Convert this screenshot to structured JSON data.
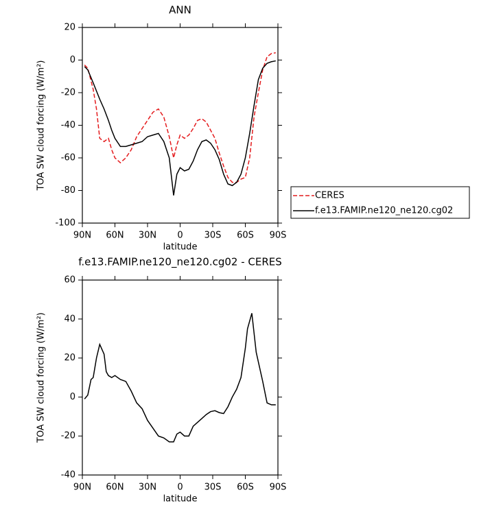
{
  "chart_data": [
    {
      "type": "line",
      "title": "ANN",
      "x_label": "latitude",
      "y_label": "TOA SW cloud forcing (W/m²)",
      "xlim": [
        90,
        -90
      ],
      "ylim": [
        -100,
        20
      ],
      "xticks": [
        {
          "value": 90,
          "label": "90N"
        },
        {
          "value": 60,
          "label": "60N"
        },
        {
          "value": 30,
          "label": "30N"
        },
        0,
        {
          "value": -30,
          "label": "30S"
        },
        {
          "value": -60,
          "label": "60S"
        },
        {
          "value": -90,
          "label": "90S"
        }
      ],
      "yticks": [
        -100,
        -80,
        -60,
        -40,
        -20,
        0,
        20
      ],
      "legend": "outside-right",
      "x": [
        88,
        85,
        80,
        77,
        74,
        70,
        66,
        63,
        60,
        55,
        50,
        45,
        40,
        35,
        30,
        25,
        20,
        15,
        10,
        6,
        3,
        0,
        -4,
        -8,
        -12,
        -16,
        -20,
        -24,
        -28,
        -32,
        -36,
        -40,
        -44,
        -48,
        -52,
        -56,
        -60,
        -64,
        -68,
        -72,
        -76,
        -80,
        -84,
        -88
      ],
      "series": [
        {
          "name": "CERES",
          "color": "#e41a1c",
          "dashed": true,
          "values": [
            -3,
            -5,
            -18,
            -30,
            -48,
            -50,
            -48,
            -55,
            -60,
            -63,
            -60,
            -55,
            -47,
            -42,
            -37,
            -32,
            -30,
            -35,
            -47,
            -60,
            -52,
            -46,
            -48,
            -46,
            -42,
            -37,
            -36,
            -38,
            -43,
            -48,
            -57,
            -65,
            -72,
            -75,
            -75,
            -73,
            -72,
            -60,
            -35,
            -20,
            -6,
            2,
            4,
            4.5
          ]
        },
        {
          "name": "f.e13.FAMIP.ne120_ne120.cg02",
          "color": "#000000",
          "dashed": false,
          "values": [
            -4,
            -6,
            -14,
            -19,
            -24,
            -30,
            -37,
            -43,
            -48,
            -53,
            -53,
            -52,
            -51,
            -50,
            -47,
            -46,
            -45,
            -50,
            -60,
            -83,
            -70,
            -66,
            -68,
            -67,
            -62,
            -55,
            -50,
            -49,
            -51,
            -55,
            -61,
            -70,
            -76,
            -77,
            -75,
            -70,
            -60,
            -45,
            -28,
            -12,
            -5,
            -2,
            -1,
            -0.5
          ]
        }
      ]
    },
    {
      "type": "line",
      "title": "f.e13.FAMIP.ne120_ne120.cg02 - CERES",
      "x_label": "latitude",
      "y_label": "TOA SW cloud forcing (W/m²)",
      "xlim": [
        90,
        -90
      ],
      "ylim": [
        -40,
        60
      ],
      "xticks": [
        {
          "value": 90,
          "label": "90N"
        },
        {
          "value": 60,
          "label": "60N"
        },
        {
          "value": 30,
          "label": "30N"
        },
        0,
        {
          "value": -30,
          "label": "30S"
        },
        {
          "value": -60,
          "label": "60S"
        },
        {
          "value": -90,
          "label": "90S"
        }
      ],
      "yticks": [
        -40,
        -20,
        0,
        20,
        40,
        60
      ],
      "x": [
        88,
        85,
        82,
        80,
        77,
        74,
        70,
        68,
        66,
        63,
        60,
        55,
        50,
        45,
        40,
        35,
        30,
        25,
        20,
        15,
        10,
        6,
        3,
        0,
        -4,
        -8,
        -12,
        -16,
        -20,
        -24,
        -28,
        -32,
        -36,
        -40,
        -44,
        -48,
        -52,
        -56,
        -60,
        -62,
        -66,
        -70,
        -72,
        -76,
        -80,
        -84,
        -88
      ],
      "series": [
        {
          "color": "#000000",
          "dashed": false,
          "values": [
            -1,
            1,
            9,
            10,
            20,
            27,
            22,
            13,
            11,
            10,
            11,
            9,
            8,
            3,
            -3,
            -6,
            -12,
            -16,
            -20,
            -21,
            -23,
            -23,
            -19,
            -18,
            -20,
            -20,
            -15,
            -13,
            -11,
            -9,
            -7.5,
            -7,
            -8,
            -8.5,
            -5,
            0,
            4,
            10,
            25,
            35,
            43,
            23,
            18,
            8,
            -3,
            -4,
            -4
          ]
        }
      ]
    }
  ]
}
